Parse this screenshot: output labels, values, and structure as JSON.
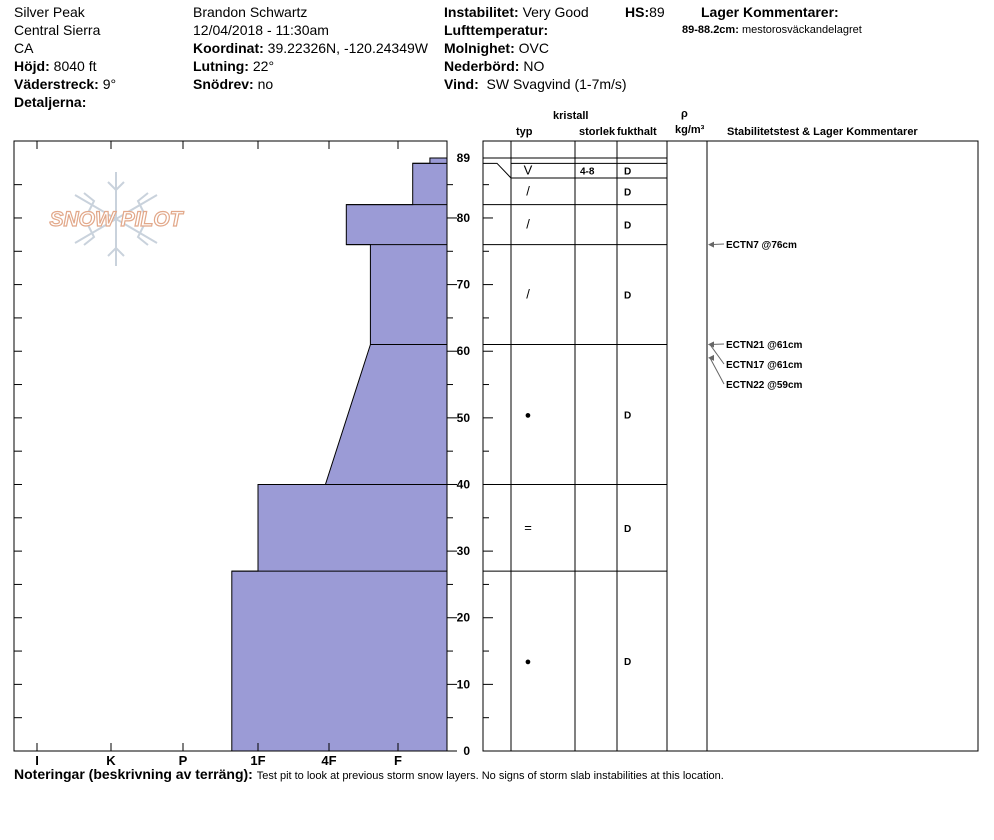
{
  "header": {
    "location": "Silver Peak",
    "range": "Central Sierra",
    "state": "CA",
    "elevation_label": "Höjd:",
    "elevation_value": "8040 ft",
    "aspect_label": "Väderstreck:",
    "aspect_value": "9°",
    "details_label": "Detaljerna:",
    "observer": "Brandon Schwartz",
    "datetime": "12/04/2018 - 11:30am",
    "coord_label": "Koordinat:",
    "coord_value": "39.22326N, -120.24349W",
    "slope_label": "Lutning:",
    "slope_value": "22°",
    "drift_label": "Snödrev:",
    "drift_value": "no",
    "stability_label": "Instabilitet:",
    "stability_value": "Very Good",
    "hs_label": "HS:",
    "hs_value": "89",
    "airtemp_label": "Lufttemperatur:",
    "sky_label": "Molnighet:",
    "sky_value": "OVC",
    "precip_label": "Nederbörd:",
    "precip_value": "NO",
    "wind_label": "Vind:",
    "wind_value": "SW Svagvind (1-7m/s)",
    "layer_comments_title": "Lager Kommentarer:",
    "layer_comment_range": "89-88.2cm:",
    "layer_comment_text": "mestorosväckandelagret"
  },
  "columns": {
    "crystal": "kristall",
    "type": "typ",
    "size": "storlek",
    "moisture": "fukthalt",
    "rho": "ρ",
    "density_unit": "kg/m³",
    "stability": "Stabilitetstest & Lager Kommentarer"
  },
  "logo_text": "SNOW PILOT",
  "notes_label": "Noteringar (beskrivning av terräng):",
  "notes_text": "Test pit to look at previous storm snow layers.  No signs of storm slab instabilities at this location.",
  "colors": {
    "fill": "#9b9bd6",
    "stroke": "#000000",
    "logo": "#e2a88a"
  },
  "chart_data": {
    "type": "snow-profile",
    "y_axis_unit": "cm",
    "ylim": [
      0,
      89
    ],
    "y_ticks": [
      0,
      10,
      20,
      30,
      40,
      50,
      60,
      70,
      80,
      89
    ],
    "hardness_scale": [
      "I",
      "K",
      "P",
      "1F",
      "4F",
      "F"
    ],
    "hardness_profile": [
      {
        "height": 0,
        "hardness": 3.35
      },
      {
        "height": 27,
        "hardness": 3.35
      },
      {
        "height": 27,
        "hardness": 3.0
      },
      {
        "height": 40,
        "hardness": 3.0
      },
      {
        "height": 40,
        "hardness": 2.05
      },
      {
        "height": 61,
        "hardness": 1.4
      },
      {
        "height": 76,
        "hardness": 1.4
      },
      {
        "height": 76,
        "hardness": 1.75
      },
      {
        "height": 82,
        "hardness": 1.75
      },
      {
        "height": 82,
        "hardness": 0.7
      },
      {
        "height": 88.2,
        "hardness": 0.7
      },
      {
        "height": 88.2,
        "hardness": 0.35
      },
      {
        "height": 89,
        "hardness": 0.35
      }
    ],
    "layers": [
      {
        "top": 89,
        "bottom": 88.2,
        "type": "",
        "size": "",
        "moisture": ""
      },
      {
        "top": 88.2,
        "bottom": 86,
        "type": "V",
        "size": "4-8",
        "moisture": "D"
      },
      {
        "top": 86,
        "bottom": 82,
        "type": "/",
        "size": "",
        "moisture": "D"
      },
      {
        "top": 82,
        "bottom": 76,
        "type": "/",
        "size": "",
        "moisture": "D"
      },
      {
        "top": 76,
        "bottom": 61,
        "type": "/",
        "size": "",
        "moisture": "D"
      },
      {
        "top": 61,
        "bottom": 40,
        "type": "●",
        "size": "",
        "moisture": "D"
      },
      {
        "top": 40,
        "bottom": 27,
        "type": "=",
        "size": "",
        "moisture": "D"
      },
      {
        "top": 27,
        "bottom": 0,
        "type": "●",
        "size": "",
        "moisture": "D"
      }
    ],
    "tests": [
      {
        "label": "ECTN7 @76cm",
        "height": 76
      },
      {
        "label": "ECTN21 @61cm",
        "height": 61
      },
      {
        "label": "ECTN17 @61cm",
        "height": 61
      },
      {
        "label": "ECTN22 @59cm",
        "height": 59
      }
    ]
  }
}
